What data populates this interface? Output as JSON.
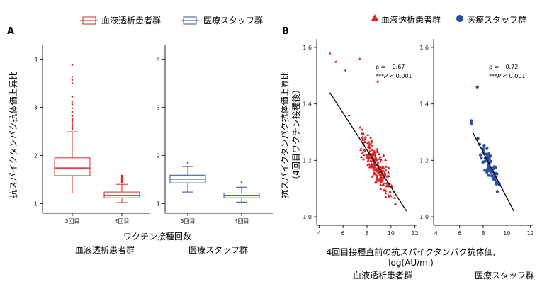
{
  "colors": {
    "hd": "#d62728",
    "staff": "#2a4fa0"
  },
  "legend_a": {
    "hd": "血液透析患者群",
    "staff": "医療スタッフ群"
  },
  "legend_b": {
    "hd": "血液透析患者群",
    "staff": "医療スタッフ群"
  },
  "chart_data": [
    {
      "panel": "A",
      "type": "box",
      "ylabel": "抗スパイクタンパク抗体価上昇比",
      "xlabel": "ワクチン接種回数",
      "group_labels": [
        "血液透析患者群",
        "医療スタッフ群"
      ],
      "ylim": [
        0.8,
        4.3
      ],
      "yticks": [
        1,
        2,
        3,
        4
      ],
      "categories": [
        "3回目",
        "4回目"
      ],
      "series": [
        {
          "name": "血液透析患者群",
          "color": "#d62728",
          "boxes": [
            {
              "category": "3回目",
              "min": 1.22,
              "q1": 1.58,
              "median": 1.74,
              "q3": 1.95,
              "max": 2.49,
              "outliers": [
                2.55,
                2.6,
                2.64,
                2.68,
                2.72,
                2.76,
                2.82,
                2.9,
                2.98,
                3.06,
                3.12,
                3.22,
                3.5,
                3.57,
                3.63,
                3.88
              ]
            },
            {
              "category": "4回目",
              "min": 1.02,
              "q1": 1.12,
              "median": 1.17,
              "q3": 1.24,
              "max": 1.4,
              "outliers": [
                1.45,
                1.49,
                1.52,
                1.55,
                1.58
              ]
            }
          ]
        },
        {
          "name": "医療スタッフ群",
          "color": "#2a4fa0",
          "boxes": [
            {
              "category": "3回目",
              "min": 1.24,
              "q1": 1.43,
              "median": 1.51,
              "q3": 1.59,
              "max": 1.77,
              "outliers": [
                1.85
              ]
            },
            {
              "category": "4回目",
              "min": 1.03,
              "q1": 1.12,
              "median": 1.17,
              "q3": 1.22,
              "max": 1.34,
              "outliers": [
                1.44
              ]
            }
          ]
        }
      ]
    },
    {
      "panel": "B",
      "type": "scatter",
      "ylabel": "抗スパイクタンパク抗体価上昇比",
      "ylabel2": "（4回目ワクチン接種後）",
      "xlabel": "4回目接種直前の抗スパイクタンパク抗体価,",
      "xlabel2": "log(AU/ml)",
      "group_labels": [
        "血液透析患者群",
        "医療スタッフ群"
      ],
      "xlim": [
        3.8,
        12.2
      ],
      "xticks": [
        4,
        6,
        8,
        10,
        12
      ],
      "ylim": [
        0.97,
        1.63
      ],
      "yticks": [
        1.0,
        1.2,
        1.4,
        1.6
      ],
      "series": [
        {
          "name": "血液透析患者群",
          "color": "#d62728",
          "marker": "triangle",
          "rho_text": "ρ = −0.67",
          "p_prefix": "***",
          "p_label": "P",
          "p_rest": " < 0.001",
          "fit": {
            "x": [
              4.9,
              11.3
            ],
            "y": [
              1.44,
              1.02
            ]
          },
          "n": 230,
          "x_center": 8.9,
          "x_spread": 1.15,
          "y_resid": 0.055,
          "outliers": [
            [
              4.9,
              1.58
            ],
            [
              5.4,
              1.55
            ],
            [
              6.2,
              1.52
            ],
            [
              7.4,
              1.56
            ],
            [
              8.9,
              1.48
            ],
            [
              6.5,
              1.36
            ]
          ]
        },
        {
          "name": "医療スタッフ群",
          "color": "#2a4fa0",
          "marker": "circle",
          "rho_text": "ρ = −0.72",
          "p_prefix": "***",
          "p_label": "P",
          "p_rest": " < 0.001",
          "fit": {
            "x": [
              7.1,
              10.6
            ],
            "y": [
              1.3,
              1.02
            ]
          },
          "n": 65,
          "x_center": 8.5,
          "x_spread": 0.75,
          "y_resid": 0.045,
          "outliers": [
            [
              7.5,
              1.46
            ],
            [
              7.0,
              1.34
            ],
            [
              7.0,
              1.33
            ]
          ]
        }
      ]
    }
  ]
}
